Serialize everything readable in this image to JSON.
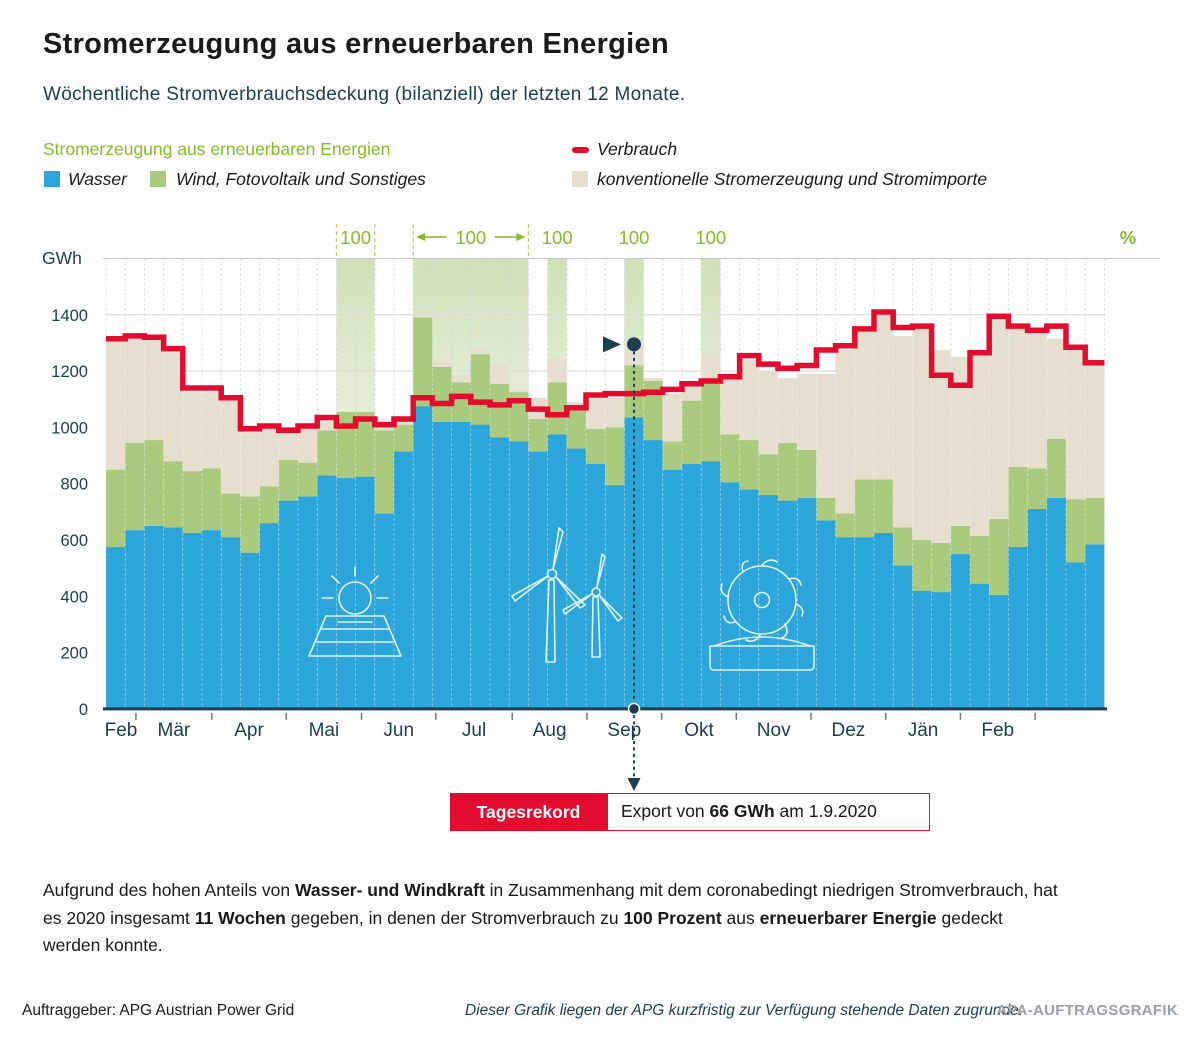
{
  "header": {
    "title": "Stromerzeugung aus erneuerbaren Energien",
    "subtitle": "Wöchentliche Stromverbrauchsdeckung (bilanziell) der letzten 12 Monate."
  },
  "legend": {
    "renewables_heading": "Stromerzeugung aus erneuerbaren Energien",
    "wasser": "Wasser",
    "wind": "Wind, Fotovoltaik und Sonstiges",
    "verbrauch": "Verbrauch",
    "konventionell": "konventionelle Stromerzeugung und Stromimporte"
  },
  "chart_data": {
    "type": "bar",
    "subtype": "stacked-weekly-bars-with-step-line",
    "unit_left": "GWh",
    "unit_right": "%",
    "ylim": [
      0,
      1600
    ],
    "y_ticks": [
      0,
      200,
      400,
      600,
      800,
      1000,
      1200,
      1400
    ],
    "months": [
      "Feb",
      "Mär",
      "Apr",
      "Mai",
      "Jun",
      "Jul",
      "Aug",
      "Sep",
      "Okt",
      "Nov",
      "Dez",
      "Jän",
      "Feb"
    ],
    "month_boundaries_weeks": [
      1.56,
      5.51,
      9.39,
      13.31,
      17.18,
      21.16,
      25.05,
      28.94,
      32.83,
      36.72,
      40.61,
      44.5,
      48.39
    ],
    "weeks": 52,
    "series": [
      {
        "name": "Wasser",
        "color": "#2ba5da",
        "values": [
          575,
          635,
          650,
          645,
          625,
          635,
          610,
          555,
          660,
          740,
          755,
          830,
          820,
          825,
          695,
          915,
          1075,
          1020,
          1020,
          1010,
          965,
          950,
          915,
          975,
          925,
          870,
          795,
          1035,
          955,
          850,
          870,
          880,
          805,
          780,
          760,
          740,
          750,
          670,
          610,
          610,
          625,
          510,
          420,
          415,
          550,
          445,
          405,
          575,
          710,
          750,
          520,
          585
        ]
      },
      {
        "name": "Wind, Fotovoltaik und Sonstiges",
        "color": "#aaca7e",
        "values": [
          275,
          310,
          305,
          235,
          220,
          220,
          155,
          200,
          130,
          145,
          120,
          160,
          235,
          230,
          295,
          95,
          315,
          195,
          140,
          250,
          190,
          175,
          115,
          185,
          135,
          125,
          205,
          185,
          210,
          100,
          225,
          290,
          170,
          175,
          145,
          205,
          170,
          80,
          85,
          205,
          190,
          135,
          180,
          175,
          100,
          170,
          270,
          285,
          145,
          210,
          225,
          165
        ]
      },
      {
        "name": "konventionelle Stromerzeugung und Stromimporte",
        "color": "#e6dfcf",
        "values": [
          460,
          370,
          360,
          390,
          280,
          270,
          330,
          235,
          210,
          115,
          130,
          50,
          0,
          0,
          30,
          15,
          25,
          25,
          25,
          20,
          70,
          10,
          75,
          85,
          30,
          110,
          105,
          75,
          10,
          170,
          60,
          95,
          195,
          285,
          295,
          230,
          270,
          440,
          580,
          525,
          590,
          680,
          765,
          685,
          600,
          655,
          710,
          490,
          490,
          355,
          540,
          490
        ]
      }
    ],
    "line_series": {
      "name": "Verbrauch",
      "color": "#e20c2f",
      "values": [
        1315,
        1325,
        1320,
        1280,
        1140,
        1140,
        1105,
        995,
        1005,
        990,
        1005,
        1035,
        1005,
        1030,
        1010,
        1030,
        1105,
        1085,
        1110,
        1090,
        1080,
        1095,
        1065,
        1045,
        1070,
        1115,
        1120,
        1120,
        1125,
        1135,
        1155,
        1165,
        1180,
        1255,
        1225,
        1210,
        1220,
        1275,
        1290,
        1350,
        1410,
        1355,
        1360,
        1185,
        1150,
        1265,
        1395,
        1360,
        1345,
        1360,
        1285,
        1230
      ]
    },
    "hundred_percent_bands": [
      {
        "weeks": [
          13,
          14
        ],
        "label": "100",
        "style": "dashed-box"
      },
      {
        "weeks": [
          17,
          18,
          19,
          20,
          21,
          22
        ],
        "label": "100",
        "style": "dashed-arrows"
      },
      {
        "weeks": [
          24
        ],
        "label": "100",
        "style": "plain"
      },
      {
        "weeks": [
          28
        ],
        "label": "100",
        "style": "plain"
      },
      {
        "weeks": [
          32
        ],
        "label": "100",
        "style": "plain"
      }
    ],
    "record_marker": {
      "week": 28
    }
  },
  "annotation": {
    "badge": "Tagesrekord",
    "text_prefix": "Export von ",
    "text_bold": "66 GWh",
    "text_suffix": " am 1.9.2020"
  },
  "body": {
    "segments": [
      {
        "t": "Aufgrund des hohen Anteils von "
      },
      {
        "t": "Wasser- und Windkraft",
        "b": true
      },
      {
        "t": " in Zusammenhang mit dem coronabedingt niedrigen Stromverbrauch, hat es 2020 insgesamt "
      },
      {
        "t": "11 Wochen",
        "b": true
      },
      {
        "t": " gegeben, in denen der Stromverbrauch zu "
      },
      {
        "t": "100 Prozent",
        "b": true
      },
      {
        "t": " aus "
      },
      {
        "t": "erneuerbarer Energie",
        "b": true
      },
      {
        "t": " gedeckt werden konnte."
      }
    ]
  },
  "footer": {
    "left": "Auftraggeber: APG Austrian Power Grid",
    "center": "Dieser Grafik liegen der APG kurzfristig zur Verfügung stehende Daten zugrunde.",
    "right": "APA-AUFTRAGSGRAFIK"
  },
  "colors": {
    "wasser": "#2ba5da",
    "wind": "#aaca7e",
    "konventionell": "#e6dfcf",
    "verbrauch": "#e20c2f",
    "accent_green": "#86bc25",
    "navy": "#1b3e52",
    "grid": "#d8d8d8"
  }
}
